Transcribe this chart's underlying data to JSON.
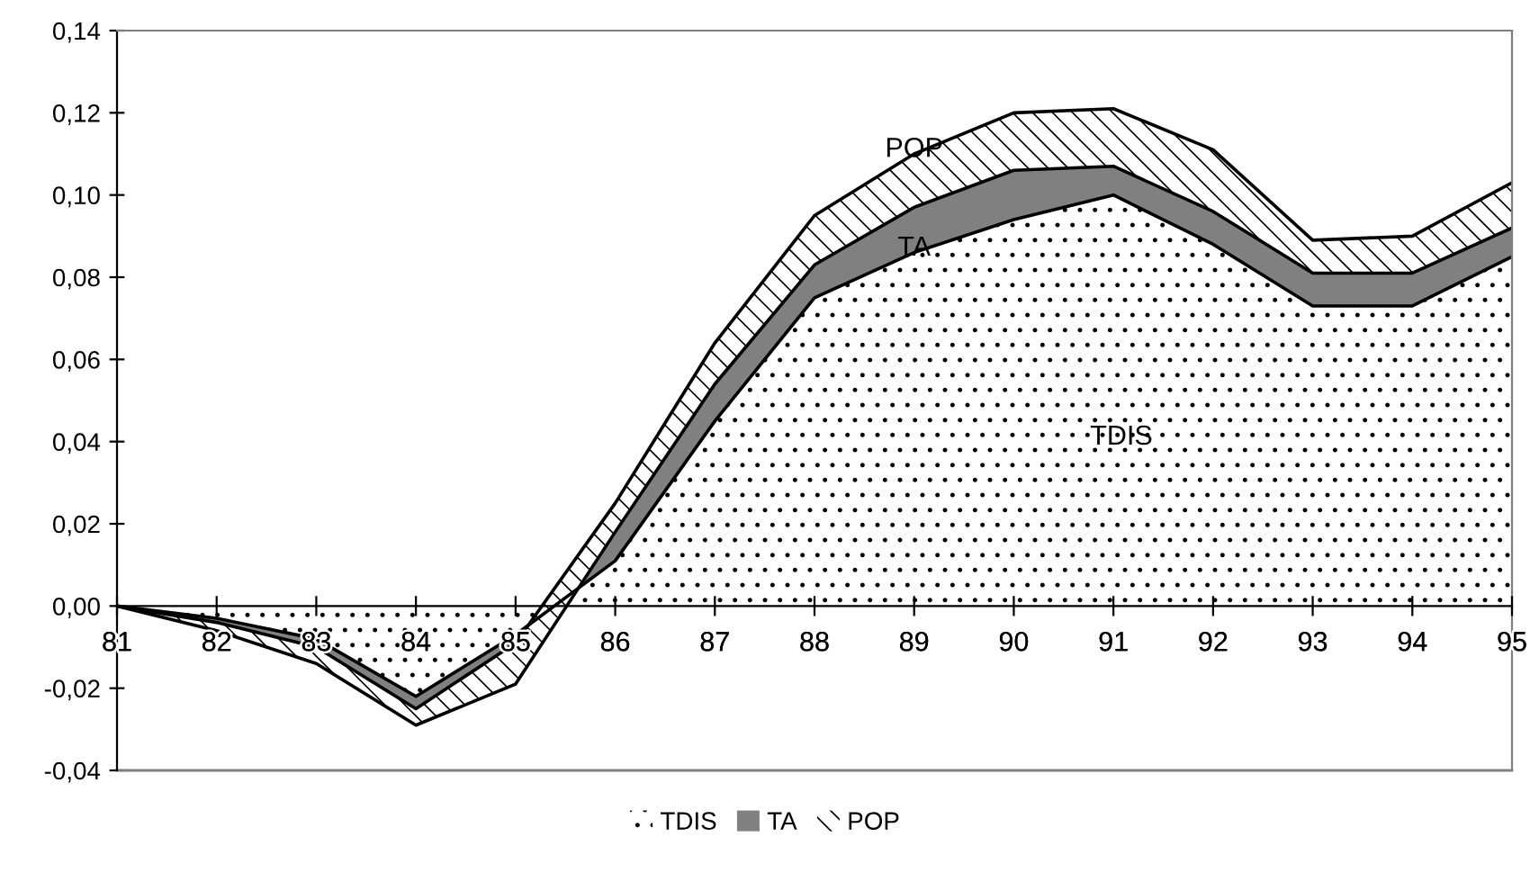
{
  "chart_data": {
    "type": "area",
    "stacked": true,
    "categories": [
      "81",
      "82",
      "83",
      "84",
      "85",
      "86",
      "87",
      "88",
      "89",
      "90",
      "91",
      "92",
      "93",
      "94",
      "95"
    ],
    "series": [
      {
        "name": "TDIS",
        "color": "#ffffff",
        "values": [
          0,
          -0.003,
          -0.008,
          -0.022,
          -0.007,
          0.011,
          0.045,
          0.075,
          0.086,
          0.094,
          0.1,
          0.088,
          0.073,
          0.073,
          0.085
        ]
      },
      {
        "name": "TA",
        "color": "#808080",
        "values": [
          0,
          -0.003,
          -0.006,
          -0.007,
          -0.012,
          0.007,
          0.009,
          0.008,
          0.011,
          0.012,
          0.007,
          0.008,
          0.008,
          0.008,
          0.007
        ]
      },
      {
        "name": "POP",
        "color": "#ffffff",
        "values": [
          0,
          0.002,
          0.004,
          0.004,
          0.01,
          0.007,
          0.01,
          0.012,
          0.013,
          0.014,
          0.014,
          0.015,
          0.008,
          0.009,
          0.011
        ]
      }
    ],
    "ylim": [
      -0.04,
      0.14
    ],
    "yticks": [
      {
        "value": -0.04,
        "label": "-0,04"
      },
      {
        "value": -0.02,
        "label": "-0,02"
      },
      {
        "value": 0,
        "label": "0,00"
      },
      {
        "value": 0.02,
        "label": "0,02"
      },
      {
        "value": 0.04,
        "label": "0,04"
      },
      {
        "value": 0.06,
        "label": "0,06"
      },
      {
        "value": 0.08,
        "label": "0,08"
      },
      {
        "value": 0.1,
        "label": "0,10"
      },
      {
        "value": 0.12,
        "label": "0,12"
      },
      {
        "value": 0.14,
        "label": "0,14"
      }
    ],
    "annotations": [
      {
        "text": "POP",
        "x": "89",
        "y": 0.111
      },
      {
        "text": "TA",
        "x": "89",
        "y": 0.087
      },
      "TDIS"
    ],
    "grid": false,
    "legend": "bottom"
  }
}
